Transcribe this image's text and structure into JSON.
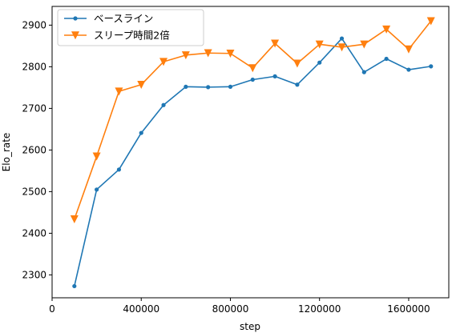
{
  "chart_data": {
    "type": "line",
    "xlabel": "step",
    "ylabel": "Elo_rate",
    "xlim": [
      0,
      1780000
    ],
    "ylim": [
      2245,
      2945
    ],
    "x_ticks": [
      0,
      400000,
      800000,
      1200000,
      1600000
    ],
    "x_tick_labels": [
      "0",
      "400000",
      "800000",
      "1200000",
      "1600000"
    ],
    "y_ticks": [
      2300,
      2400,
      2500,
      2600,
      2700,
      2800,
      2900
    ],
    "y_tick_labels": [
      "2300",
      "2400",
      "2500",
      "2600",
      "2700",
      "2800",
      "2900"
    ],
    "grid": false,
    "legend_position": "top-left",
    "x": [
      100000,
      200000,
      300000,
      400000,
      500000,
      600000,
      700000,
      800000,
      900000,
      1000000,
      1100000,
      1200000,
      1300000,
      1400000,
      1500000,
      1600000,
      1700000
    ],
    "series": [
      {
        "name": "ベースライン",
        "color": "#1f77b4",
        "marker": "circle",
        "values": [
          2273,
          2505,
          2553,
          2641,
          2708,
          2752,
          2751,
          2752,
          2769,
          2777,
          2757,
          2810,
          2868,
          2787,
          2819,
          2793,
          2801
        ]
      },
      {
        "name": "スリープ時間2倍",
        "color": "#ff7f0e",
        "marker": "triangle-down",
        "values": [
          2434,
          2585,
          2741,
          2757,
          2812,
          2828,
          2833,
          2832,
          2797,
          2856,
          2808,
          2854,
          2847,
          2854,
          2890,
          2842,
          2910
        ]
      }
    ]
  }
}
